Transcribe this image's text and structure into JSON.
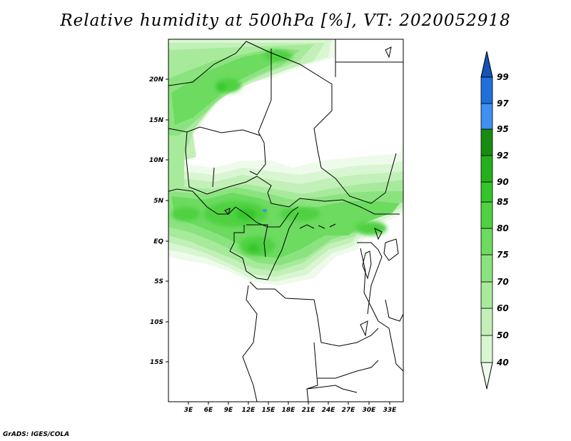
{
  "title": "Relative humidity at 500hPa [%], VT: 2020052918",
  "footer": "GrADS: IGES/COLA",
  "map": {
    "lat_labels": [
      "20N",
      "15N",
      "10N",
      "5N",
      "EQ",
      "5S",
      "10S",
      "15S"
    ],
    "lon_labels": [
      "3E",
      "6E",
      "9E",
      "12E",
      "15E",
      "18E",
      "21E",
      "24E",
      "27E",
      "30E",
      "33E"
    ]
  },
  "colorbar": {
    "labels": [
      "40",
      "50",
      "60",
      "70",
      "75",
      "80",
      "85",
      "90",
      "92",
      "95",
      "97",
      "99"
    ],
    "colors": [
      "#eefbea",
      "#d9f6d2",
      "#c2f0b8",
      "#a8ea9c",
      "#8be37f",
      "#6cdb60",
      "#4fd142",
      "#34c52a",
      "#24b01c",
      "#178c12",
      "#3f90f0",
      "#2070dc",
      "#1652b8"
    ]
  },
  "humidity_fields": {
    "levels": [
      "40",
      "50",
      "60",
      "70",
      "75",
      "80",
      "85"
    ]
  }
}
